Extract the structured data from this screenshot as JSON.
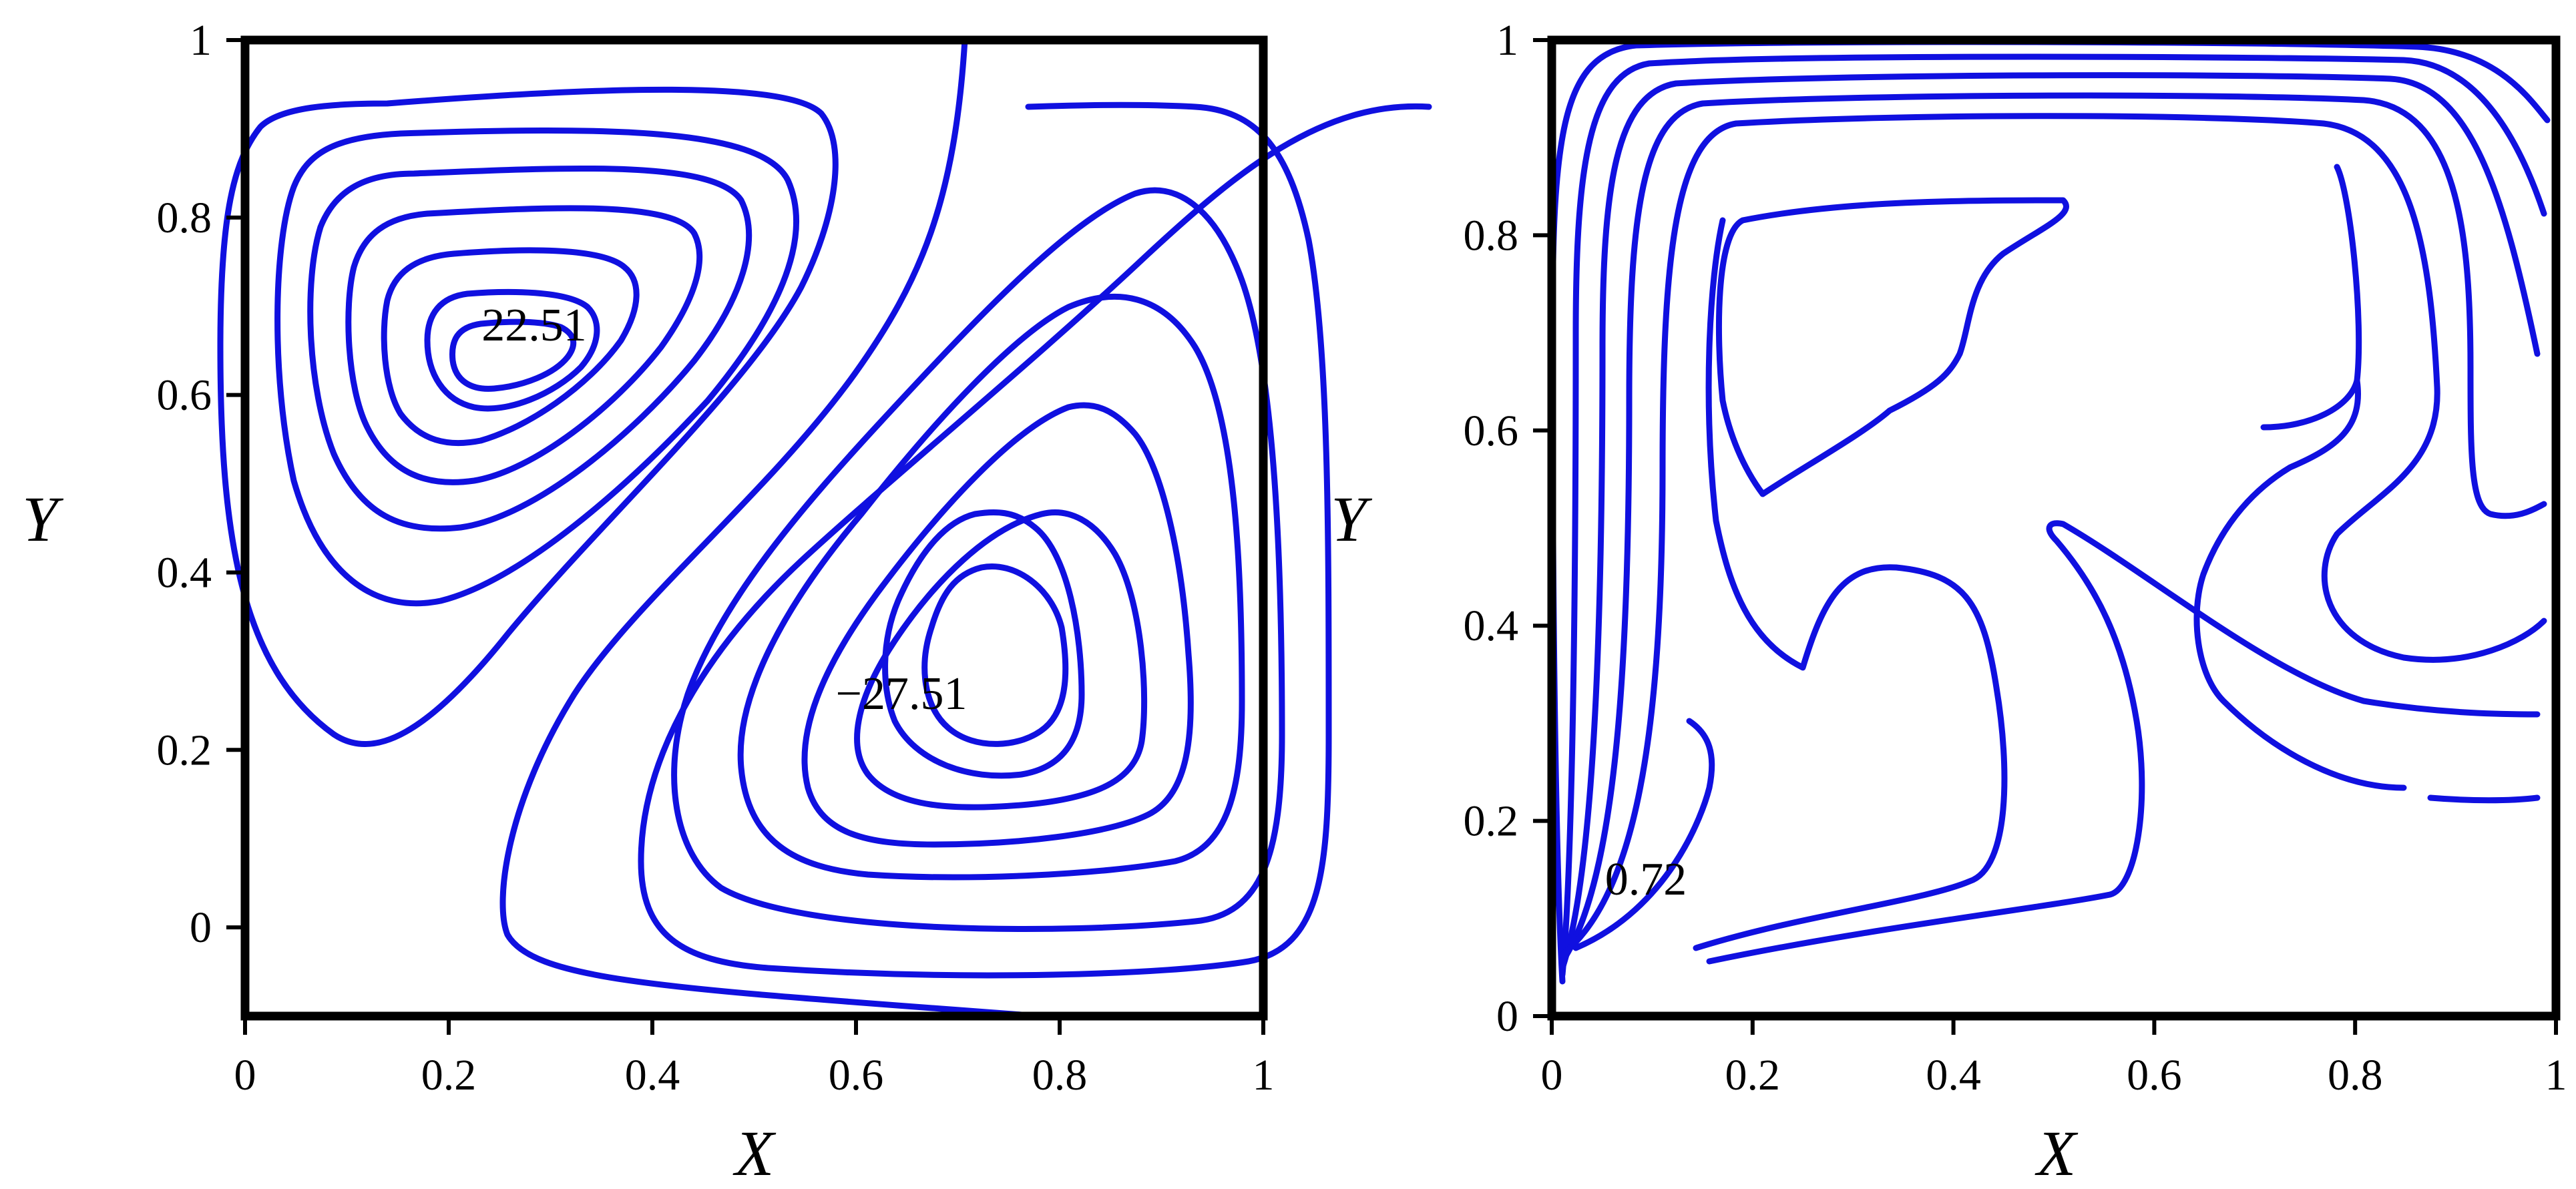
{
  "chart_data": [
    {
      "type": "contour",
      "title": "",
      "xlabel": "X",
      "ylabel": "Y",
      "xlim": [
        0,
        1
      ],
      "ylim": [
        -0.1,
        1
      ],
      "xticks": [
        "0",
        "0.2",
        "0.4",
        "0.6",
        "0.8",
        "1"
      ],
      "yticks": [
        "0",
        "0.2",
        "0.4",
        "0.6",
        "0.8",
        "1"
      ],
      "annotations": [
        {
          "text": "22.51",
          "x": 0.29,
          "y": 0.67
        },
        {
          "text": "−27.51",
          "x": 0.66,
          "y": 0.26
        }
      ],
      "line_color": "#1010E0"
    },
    {
      "type": "contour",
      "title": "",
      "xlabel": "X",
      "ylabel": "Y",
      "xlim": [
        0,
        1
      ],
      "ylim": [
        0,
        1
      ],
      "xticks": [
        "0",
        "0.2",
        "0.4",
        "0.6",
        "0.8",
        "1"
      ],
      "yticks": [
        "0",
        "0.2",
        "0.4",
        "0.6",
        "0.8",
        "1"
      ],
      "annotations": [
        {
          "text": "0.72",
          "x": 0.15,
          "y": 0.14
        }
      ],
      "line_color": "#1010E0"
    }
  ]
}
